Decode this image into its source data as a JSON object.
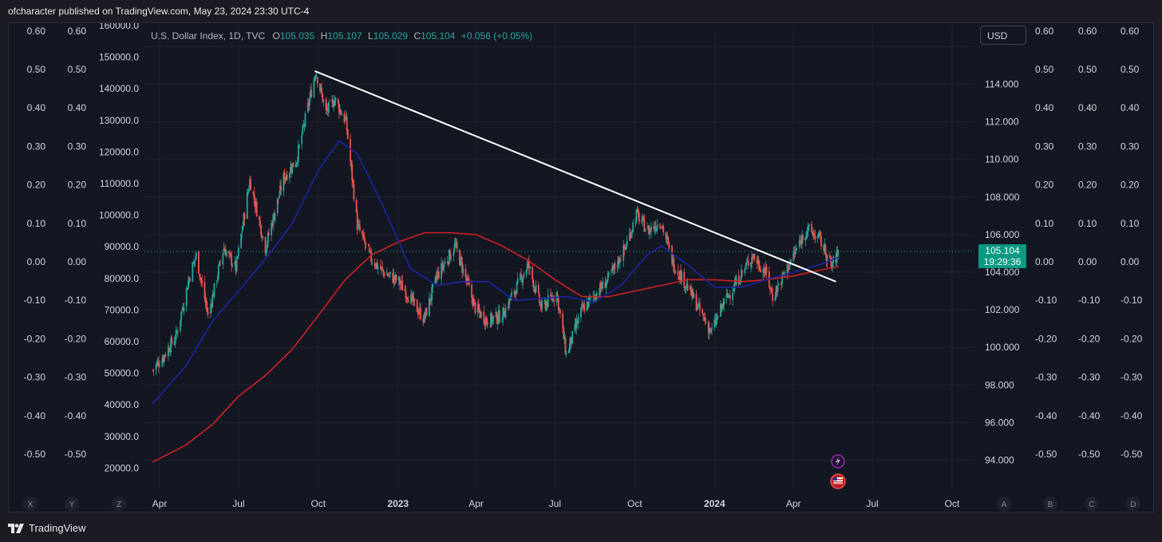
{
  "header": {
    "published_text": "ofcharacter published on TradingView.com, May 23, 2024 23:30 UTC-4"
  },
  "footer": {
    "brand": "TradingView"
  },
  "legend": {
    "symbol": "U.S. Dollar Index, 1D, TVC",
    "o_label": "O",
    "o_value": "105.035",
    "h_label": "H",
    "h_value": "105.107",
    "l_label": "L",
    "l_value": "105.029",
    "c_label": "C",
    "c_value": "105.104",
    "change": "+0.056 (+0.05%)"
  },
  "currency_button": "USD",
  "last_price": {
    "price": "105.104",
    "countdown": "19:29:36"
  },
  "axis_buttons": {
    "left": [
      "X",
      "Y",
      "Z"
    ],
    "right": [
      "A",
      "B",
      "C",
      "D"
    ]
  },
  "colors": {
    "background": "#131722",
    "grid": "#1f232e",
    "up": "#26a69a",
    "down": "#ef5350",
    "ma_fast": "#1e22a6",
    "ma_slow": "#d21f26",
    "trendline": "#ffffff",
    "price_tag": "#089981"
  },
  "chart_data": {
    "type": "candlestick",
    "title": "U.S. Dollar Index, 1D, TVC",
    "x_axis": {
      "ticks": [
        "Apr",
        "Jul",
        "Oct",
        "2023",
        "Apr",
        "Jul",
        "Oct",
        "2024",
        "Apr",
        "Jul",
        "Oct"
      ],
      "bold_ticks": [
        "2023",
        "2024"
      ]
    },
    "price_axis": {
      "ticks": [
        "114.000",
        "112.000",
        "110.000",
        "108.000",
        "106.000",
        "104.000",
        "102.000",
        "100.000",
        "98.000",
        "96.000",
        "94.000"
      ],
      "ylim": [
        93.0,
        116.5
      ]
    },
    "volume_axis": {
      "ticks": [
        "160000.0",
        "150000.0",
        "140000.0",
        "130000.0",
        "120000.0",
        "110000.0",
        "100000.0",
        "90000.0",
        "80000.0",
        "70000.0",
        "60000.0",
        "50000.0",
        "40000.0",
        "30000.0",
        "20000.0"
      ]
    },
    "oscillator_axis": {
      "ticks": [
        "0.60",
        "0.50",
        "0.40",
        "0.30",
        "0.20",
        "0.10",
        "0.00",
        "-0.10",
        "-0.20",
        "-0.30",
        "-0.40",
        "-0.50"
      ]
    },
    "price_path": [
      {
        "date": "2022-03-24",
        "close": 98.8
      },
      {
        "date": "2022-04-05",
        "close": 99.5
      },
      {
        "date": "2022-04-20",
        "close": 100.6
      },
      {
        "date": "2022-05-05",
        "close": 103.7
      },
      {
        "date": "2022-05-13",
        "close": 104.9
      },
      {
        "date": "2022-05-27",
        "close": 101.7
      },
      {
        "date": "2022-06-14",
        "close": 105.3
      },
      {
        "date": "2022-06-28",
        "close": 104.2
      },
      {
        "date": "2022-07-14",
        "close": 108.9
      },
      {
        "date": "2022-08-01",
        "close": 105.3
      },
      {
        "date": "2022-08-22",
        "close": 109.0
      },
      {
        "date": "2022-09-06",
        "close": 110.0
      },
      {
        "date": "2022-09-28",
        "close": 114.7
      },
      {
        "date": "2022-10-10",
        "close": 112.5
      },
      {
        "date": "2022-10-20",
        "close": 113.2
      },
      {
        "date": "2022-11-02",
        "close": 112.0
      },
      {
        "date": "2022-11-15",
        "close": 106.5
      },
      {
        "date": "2022-12-01",
        "close": 104.7
      },
      {
        "date": "2022-12-15",
        "close": 104.0
      },
      {
        "date": "2023-01-02",
        "close": 103.5
      },
      {
        "date": "2023-01-31",
        "close": 101.5
      },
      {
        "date": "2023-02-15",
        "close": 103.8
      },
      {
        "date": "2023-03-08",
        "close": 105.4
      },
      {
        "date": "2023-03-31",
        "close": 102.1
      },
      {
        "date": "2023-04-14",
        "close": 101.4
      },
      {
        "date": "2023-05-01",
        "close": 101.7
      },
      {
        "date": "2023-05-31",
        "close": 104.4
      },
      {
        "date": "2023-06-15",
        "close": 102.1
      },
      {
        "date": "2023-07-03",
        "close": 102.9
      },
      {
        "date": "2023-07-14",
        "close": 99.6
      },
      {
        "date": "2023-08-01",
        "close": 102.0
      },
      {
        "date": "2023-08-31",
        "close": 103.6
      },
      {
        "date": "2023-09-20",
        "close": 105.3
      },
      {
        "date": "2023-10-03",
        "close": 107.1
      },
      {
        "date": "2023-10-16",
        "close": 106.2
      },
      {
        "date": "2023-10-31",
        "close": 106.7
      },
      {
        "date": "2023-11-15",
        "close": 104.4
      },
      {
        "date": "2023-12-01",
        "close": 103.2
      },
      {
        "date": "2023-12-28",
        "close": 100.8
      },
      {
        "date": "2024-01-12",
        "close": 102.4
      },
      {
        "date": "2024-02-14",
        "close": 104.9
      },
      {
        "date": "2024-03-01",
        "close": 103.9
      },
      {
        "date": "2024-03-08",
        "close": 102.7
      },
      {
        "date": "2024-03-28",
        "close": 104.5
      },
      {
        "date": "2024-04-16",
        "close": 106.3
      },
      {
        "date": "2024-05-01",
        "close": 105.8
      },
      {
        "date": "2024-05-15",
        "close": 104.3
      },
      {
        "date": "2024-05-23",
        "close": 105.104
      }
    ],
    "ma_fast_path": [
      {
        "date": "2022-03-24",
        "value": 97.0
      },
      {
        "date": "2022-05-01",
        "value": 99.0
      },
      {
        "date": "2022-06-01",
        "value": 101.4
      },
      {
        "date": "2022-07-01",
        "value": 103.0
      },
      {
        "date": "2022-08-01",
        "value": 104.7
      },
      {
        "date": "2022-09-01",
        "value": 106.6
      },
      {
        "date": "2022-10-01",
        "value": 109.4
      },
      {
        "date": "2022-10-25",
        "value": 111.0
      },
      {
        "date": "2022-11-15",
        "value": 110.3
      },
      {
        "date": "2022-12-15",
        "value": 107.5
      },
      {
        "date": "2023-01-15",
        "value": 104.2
      },
      {
        "date": "2023-02-15",
        "value": 103.3
      },
      {
        "date": "2023-03-15",
        "value": 103.5
      },
      {
        "date": "2023-04-15",
        "value": 103.5
      },
      {
        "date": "2023-05-15",
        "value": 102.5
      },
      {
        "date": "2023-06-15",
        "value": 102.6
      },
      {
        "date": "2023-07-15",
        "value": 102.7
      },
      {
        "date": "2023-08-15",
        "value": 102.4
      },
      {
        "date": "2023-09-15",
        "value": 103.3
      },
      {
        "date": "2023-10-15",
        "value": 104.9
      },
      {
        "date": "2023-11-01",
        "value": 105.4
      },
      {
        "date": "2023-12-01",
        "value": 104.4
      },
      {
        "date": "2024-01-01",
        "value": 103.2
      },
      {
        "date": "2024-02-01",
        "value": 103.2
      },
      {
        "date": "2024-03-01",
        "value": 103.6
      },
      {
        "date": "2024-04-01",
        "value": 104.0
      },
      {
        "date": "2024-05-01",
        "value": 104.4
      },
      {
        "date": "2024-05-23",
        "value": 104.8
      }
    ],
    "ma_slow_path": [
      {
        "date": "2022-03-24",
        "value": 93.9
      },
      {
        "date": "2022-05-01",
        "value": 94.8
      },
      {
        "date": "2022-06-01",
        "value": 95.9
      },
      {
        "date": "2022-07-01",
        "value": 97.4
      },
      {
        "date": "2022-08-01",
        "value": 98.5
      },
      {
        "date": "2022-09-01",
        "value": 99.9
      },
      {
        "date": "2022-10-01",
        "value": 101.7
      },
      {
        "date": "2022-11-01",
        "value": 103.6
      },
      {
        "date": "2022-12-01",
        "value": 104.9
      },
      {
        "date": "2023-01-01",
        "value": 105.6
      },
      {
        "date": "2023-02-01",
        "value": 106.1
      },
      {
        "date": "2023-03-01",
        "value": 106.1
      },
      {
        "date": "2023-04-01",
        "value": 106.0
      },
      {
        "date": "2023-05-01",
        "value": 105.4
      },
      {
        "date": "2023-06-01",
        "value": 104.6
      },
      {
        "date": "2023-07-01",
        "value": 103.6
      },
      {
        "date": "2023-08-01",
        "value": 102.7
      },
      {
        "date": "2023-09-01",
        "value": 102.7
      },
      {
        "date": "2023-10-01",
        "value": 103.0
      },
      {
        "date": "2023-11-01",
        "value": 103.3
      },
      {
        "date": "2023-12-01",
        "value": 103.6
      },
      {
        "date": "2024-01-01",
        "value": 103.6
      },
      {
        "date": "2024-02-01",
        "value": 103.5
      },
      {
        "date": "2024-03-01",
        "value": 103.6
      },
      {
        "date": "2024-04-01",
        "value": 103.8
      },
      {
        "date": "2024-05-01",
        "value": 104.1
      },
      {
        "date": "2024-05-23",
        "value": 104.3
      }
    ],
    "trendline": {
      "start": {
        "date": "2022-09-27",
        "price": 114.7
      },
      "end": {
        "date": "2024-05-20",
        "price": 103.5
      }
    },
    "last_price_line": 105.104
  }
}
